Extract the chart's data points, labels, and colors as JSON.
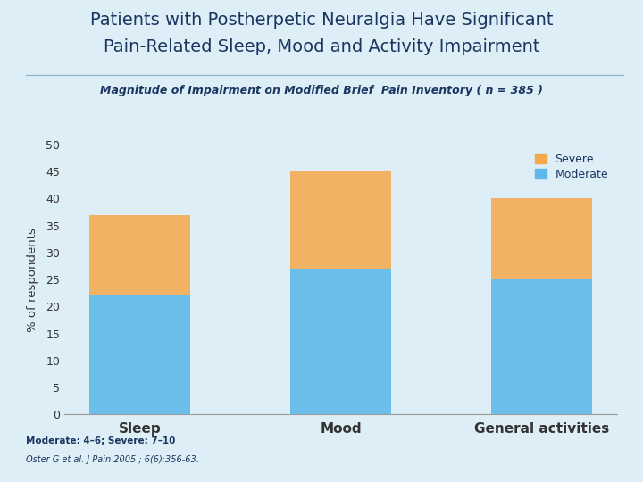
{
  "categories": [
    "Sleep",
    "Mood",
    "General activities"
  ],
  "moderate_values": [
    22,
    27,
    25
  ],
  "severe_values": [
    15,
    18,
    15
  ],
  "moderate_color": "#5BB8E8",
  "severe_color": "#F5A84A",
  "title_line1": "Patients with Postherpetic Neuralgia Have Significant",
  "title_line2": "Pain-Related Sleep, Mood and Activity Impairment",
  "subtitle": "Magnitude of Impairment on Modified Brief  Pain Inventory ( n = 385 )",
  "ylabel": "% of respondents",
  "ylim": [
    0,
    50
  ],
  "yticks": [
    0,
    5,
    10,
    15,
    20,
    25,
    30,
    35,
    40,
    45,
    50
  ],
  "footnote1": "Moderate: 4–6; Severe: 7–10",
  "footnote2": "Oster G et al. J Pain 2005 ; 6(6):356-63.",
  "bg_color": "#ddeef6",
  "title_color": "#1a3660",
  "axis_color": "#333333",
  "legend_labels": [
    "Severe",
    "Moderate"
  ],
  "legend_colors": [
    "#F5A84A",
    "#5BB8E8"
  ],
  "separator_color": "#7aaccf",
  "spine_color": "#999999"
}
